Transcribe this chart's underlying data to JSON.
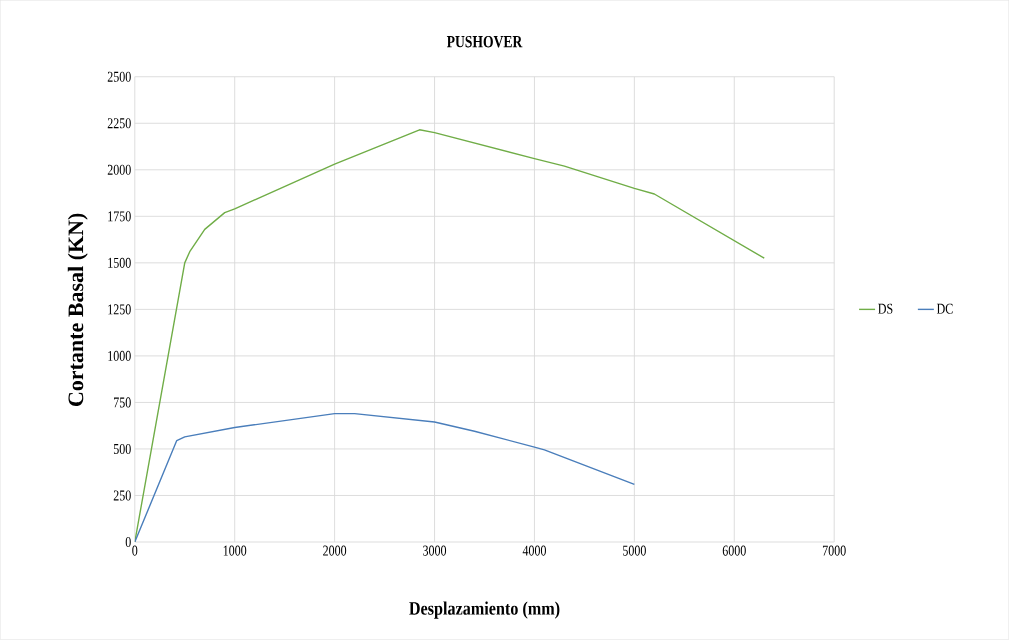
{
  "chart_data": {
    "type": "line",
    "title": "PUSHOVER",
    "xlabel": "Desplazamiento (mm)",
    "ylabel": "Cortante Basal (KN)",
    "series": [
      {
        "name": "DS",
        "color": "#70ad47",
        "x": [
          0,
          500,
          550,
          700,
          900,
          1000,
          2000,
          2850,
          3000,
          4000,
          4300,
          5000,
          5200,
          6300
        ],
        "values": [
          0,
          1500,
          1560,
          1680,
          1770,
          1790,
          2030,
          2215,
          2200,
          2060,
          2020,
          1900,
          1870,
          1525
        ]
      },
      {
        "name": "DC",
        "color": "#4a7ebb",
        "x": [
          0,
          420,
          500,
          1000,
          2000,
          2200,
          3000,
          3400,
          4000,
          4100,
          5000
        ],
        "values": [
          0,
          545,
          565,
          615,
          690,
          690,
          645,
          595,
          510,
          495,
          310
        ]
      }
    ],
    "xlim": [
      0,
      7000
    ],
    "xticks": [
      0,
      1000,
      2000,
      3000,
      4000,
      5000,
      6000,
      7000
    ],
    "ylim": [
      0,
      2500
    ],
    "yticks": [
      0,
      250,
      500,
      750,
      1000,
      1250,
      1500,
      1750,
      2000,
      2250,
      2500
    ],
    "grid": true,
    "legend": "right",
    "marker": "none",
    "line_style": "solid"
  }
}
